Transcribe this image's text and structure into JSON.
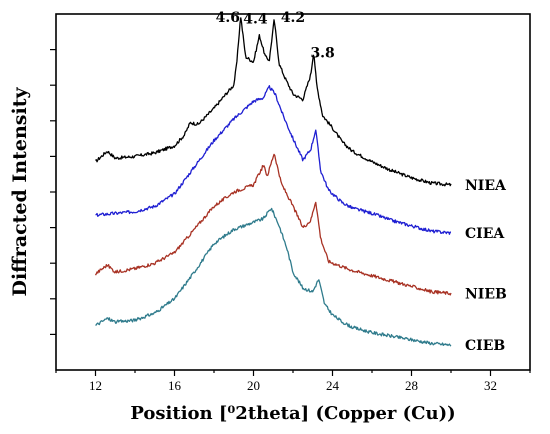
{
  "chart_data": {
    "type": "line",
    "title": "",
    "xlabel": "Position [⁰2theta] (Copper (Cu))",
    "ylabel": "Diffracted Intensity",
    "xlim": [
      10,
      34
    ],
    "xticks": [
      "12",
      "16",
      "20",
      "24",
      "28",
      "32"
    ],
    "xtick_values": [
      12,
      16,
      20,
      24,
      28,
      32
    ],
    "ylim": [
      0,
      10
    ],
    "ytick_values": [
      1,
      2,
      3,
      4,
      5,
      6,
      7,
      8,
      9
    ],
    "yticks_labeled": false,
    "grid": false,
    "legend": "labels at right end of each curve",
    "series": [
      {
        "name": "NIEA",
        "color": "#000000",
        "x": [
          12,
          12.6,
          13,
          14,
          15,
          16,
          16.5,
          16.8,
          17.2,
          18,
          18.6,
          19,
          19.15,
          19.35,
          19.6,
          20,
          20.3,
          20.6,
          20.8,
          21.05,
          21.3,
          21.6,
          22,
          22.5,
          22.9,
          23.05,
          23.2,
          23.5,
          24,
          24.5,
          25,
          26,
          27,
          28,
          29,
          30
        ],
        "y": [
          5.85,
          6.15,
          5.95,
          6.0,
          6.1,
          6.3,
          6.6,
          6.95,
          6.9,
          7.35,
          7.75,
          8.0,
          8.6,
          9.95,
          8.8,
          8.65,
          9.4,
          8.8,
          8.7,
          9.85,
          8.6,
          8.2,
          7.75,
          7.6,
          8.3,
          8.95,
          8.0,
          7.15,
          6.8,
          6.4,
          6.15,
          5.85,
          5.6,
          5.4,
          5.25,
          5.2
        ]
      },
      {
        "name": "CIEA",
        "color": "#1f1fd2",
        "x": [
          12,
          13,
          14,
          15,
          16,
          17,
          18,
          19,
          19.5,
          20,
          20.5,
          20.8,
          21.1,
          21.5,
          22,
          22.5,
          22.9,
          23.15,
          23.4,
          23.8,
          24.5,
          25,
          26,
          27,
          28,
          29,
          30
        ],
        "y": [
          4.35,
          4.4,
          4.45,
          4.6,
          4.95,
          5.7,
          6.45,
          7.05,
          7.3,
          7.55,
          7.65,
          7.95,
          7.75,
          7.15,
          6.5,
          5.9,
          6.2,
          6.75,
          5.6,
          5.05,
          4.7,
          4.55,
          4.4,
          4.2,
          4.05,
          3.9,
          3.85
        ]
      },
      {
        "name": "NIEB",
        "color": "#a83224",
        "x": [
          12,
          12.6,
          13,
          14,
          15,
          16,
          16.7,
          17,
          18,
          19,
          20,
          20.5,
          20.7,
          21.05,
          21.4,
          22,
          22.5,
          22.9,
          23.15,
          23.4,
          23.8,
          24.5,
          25,
          26,
          27,
          28,
          29,
          30
        ],
        "y": [
          2.7,
          2.95,
          2.75,
          2.85,
          3.0,
          3.3,
          3.75,
          3.95,
          4.6,
          5.0,
          5.2,
          5.75,
          5.45,
          6.1,
          5.25,
          4.6,
          4.0,
          4.2,
          4.75,
          3.7,
          3.05,
          2.9,
          2.8,
          2.65,
          2.5,
          2.35,
          2.2,
          2.15
        ]
      },
      {
        "name": "CIEB",
        "color": "#2f7b8c",
        "x": [
          12,
          12.6,
          13,
          14,
          15,
          16,
          17,
          18,
          19,
          20,
          20.5,
          20.9,
          21.3,
          21.7,
          22,
          22.5,
          23,
          23.3,
          23.6,
          24,
          24.5,
          25,
          26,
          27,
          28,
          29,
          30
        ],
        "y": [
          1.25,
          1.45,
          1.35,
          1.4,
          1.6,
          2.0,
          2.75,
          3.55,
          3.95,
          4.15,
          4.25,
          4.55,
          4.05,
          3.4,
          2.75,
          2.3,
          2.2,
          2.55,
          1.85,
          1.55,
          1.35,
          1.2,
          1.05,
          0.95,
          0.85,
          0.75,
          0.7
        ]
      }
    ],
    "annotations": [
      {
        "text": "4.6",
        "x": 18.7,
        "y": 9.95
      },
      {
        "text": "4.4",
        "x": 20.1,
        "y": 9.9
      },
      {
        "text": "4.2",
        "x": 22.0,
        "y": 9.95
      },
      {
        "text": "3.8",
        "x": 23.5,
        "y": 8.95
      }
    ]
  }
}
